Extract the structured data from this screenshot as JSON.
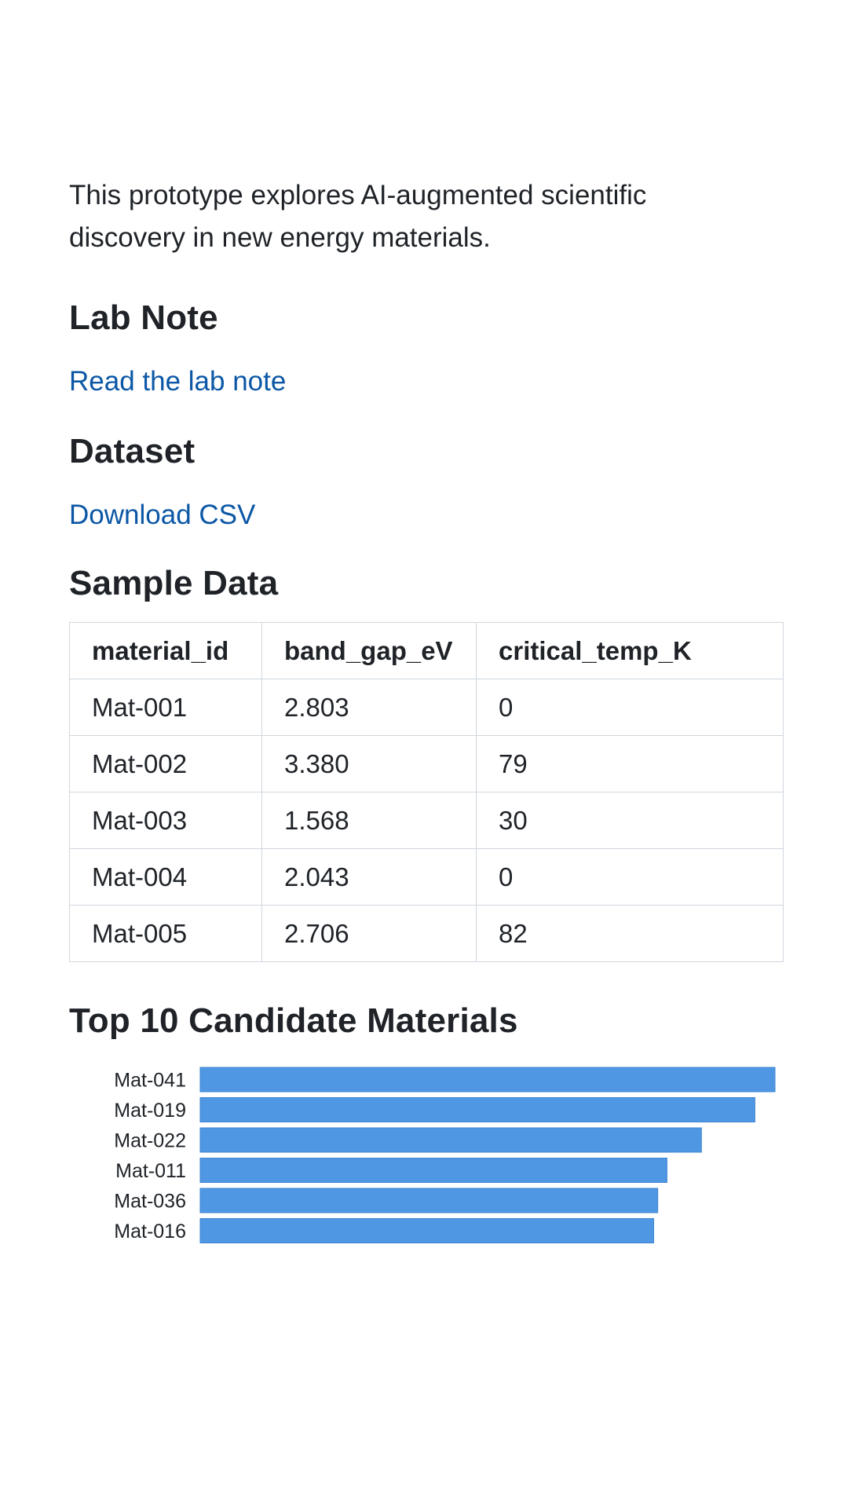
{
  "intro": "This prototype explores AI-augmented scientific discovery in new energy materials.",
  "lab_note": {
    "heading": "Lab Note",
    "link_label": "Read the lab note"
  },
  "dataset": {
    "heading": "Dataset",
    "link_label": "Download CSV"
  },
  "sample_data": {
    "heading": "Sample Data",
    "columns": [
      "material_id",
      "band_gap_eV",
      "critical_temp_K"
    ],
    "rows": [
      [
        "Mat-001",
        "2.803",
        "0"
      ],
      [
        "Mat-002",
        "3.380",
        "79"
      ],
      [
        "Mat-003",
        "1.568",
        "30"
      ],
      [
        "Mat-004",
        "2.043",
        "0"
      ],
      [
        "Mat-005",
        "2.706",
        "82"
      ]
    ]
  },
  "top_candidates": {
    "heading": "Top 10 Candidate Materials"
  },
  "colors": {
    "link": "#0b57a6",
    "bar": "#4f97e3",
    "text": "#1f2328",
    "table_border": "#d0d7de"
  },
  "chart_data": {
    "type": "bar",
    "orientation": "horizontal",
    "categories": [
      "Mat-041",
      "Mat-019",
      "Mat-022",
      "Mat-011",
      "Mat-036",
      "Mat-016"
    ],
    "values": [
      1.0,
      0.965,
      0.872,
      0.812,
      0.796,
      0.789
    ],
    "xlim": [
      0,
      1
    ],
    "title": "",
    "xlabel": "",
    "ylabel": "",
    "grid": false,
    "legend": "none"
  }
}
